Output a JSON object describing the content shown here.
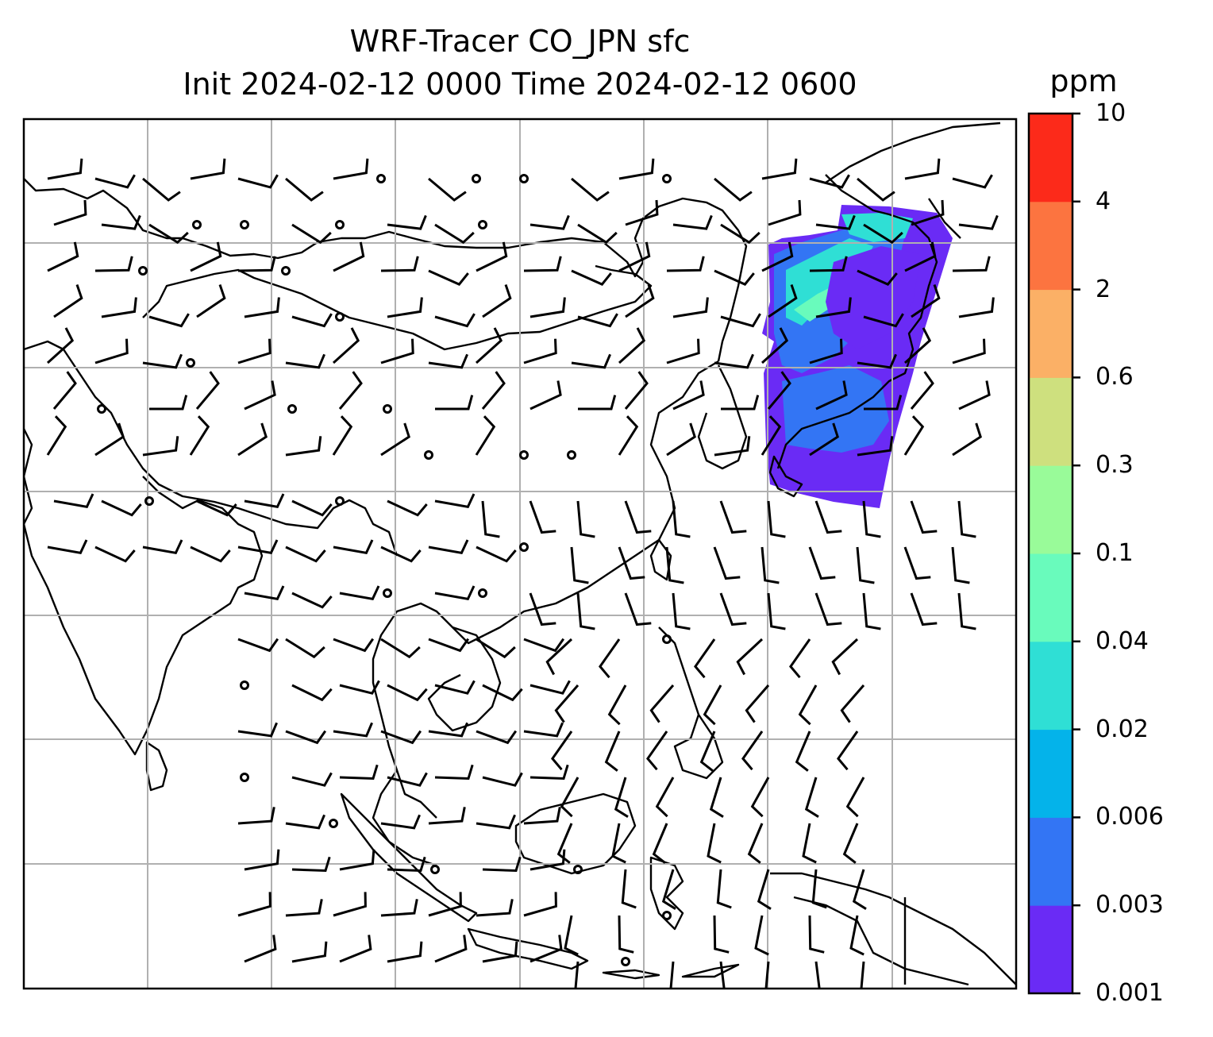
{
  "title": {
    "line1": "WRF-Tracer CO_JPN sfc",
    "line2": "Init 2024-02-12 0000 Time 2024-02-12 0600"
  },
  "colorbar": {
    "unit": "ppm",
    "ticks": [
      "0.001",
      "0.003",
      "0.006",
      "0.02",
      "0.04",
      "0.1",
      "0.3",
      "0.6",
      "2",
      "4",
      "10"
    ],
    "colors": [
      "#6a2bf5",
      "#3375f4",
      "#04b3ea",
      "#2fdfd5",
      "#69fbbc",
      "#99fb99",
      "#cee07e",
      "#fbb066",
      "#fc7440",
      "#fc2a1a"
    ]
  },
  "map": {
    "gridlines": true,
    "plume_colors": {
      "low": "#6a2bf5",
      "mid": "#3375f4",
      "high": "#2fdfd5",
      "peak": "#69fbbc"
    }
  }
}
